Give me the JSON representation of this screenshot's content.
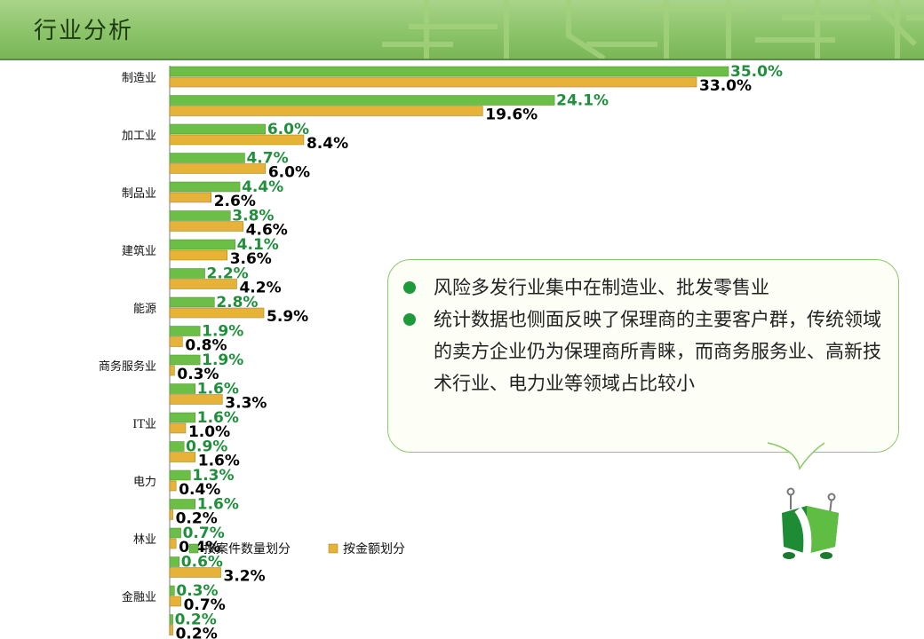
{
  "page": {
    "title": "行业分析"
  },
  "colors": {
    "green": "#6cbf46",
    "gold": "#e6b338",
    "green_label": "#1f8f3c",
    "black_label": "#000000"
  },
  "chart_data": {
    "type": "bar",
    "orientation": "horizontal",
    "categories": [
      "制造业",
      "",
      "加工业",
      "",
      "制品业",
      "",
      "建筑业",
      "",
      "能源",
      "",
      "商务服务业",
      "",
      "IT业",
      "",
      "电力",
      "",
      "林业",
      "",
      "金融业",
      ""
    ],
    "series": [
      {
        "name": "按案件数量划分",
        "color": "#6cbf46",
        "values": [
          35.0,
          24.1,
          6.0,
          4.7,
          4.4,
          3.8,
          4.1,
          2.2,
          2.8,
          1.9,
          1.9,
          1.6,
          1.6,
          0.9,
          1.3,
          1.6,
          0.7,
          0.6,
          0.3,
          0.2
        ],
        "labels": [
          "35.0%",
          "24.1%",
          "6.0%",
          "4.7%",
          "4.4%",
          "3.8%",
          "4.1%",
          "2.2%",
          "2.8%",
          "1.9%",
          "1.9%",
          "1.6%",
          "1.6%",
          "0.9%",
          "1.3%",
          "1.6%",
          "0.7%",
          "0.6%",
          "0.3%",
          "0.2%"
        ]
      },
      {
        "name": "按金额划分",
        "color": "#e6b338",
        "values": [
          33.0,
          19.6,
          8.4,
          6.0,
          2.6,
          4.6,
          3.6,
          4.2,
          5.9,
          0.8,
          0.3,
          3.3,
          1.0,
          1.6,
          0.4,
          0.2,
          0.4,
          3.2,
          0.7,
          0.2
        ],
        "labels": [
          "33.0%",
          "19.6%",
          "8.4%",
          "6.0%",
          "2.6%",
          "4.6%",
          "3.6%",
          "4.2%",
          "5.9%",
          "0.8%",
          "0.3%",
          "3.3%",
          "1.0%",
          "1.6%",
          "0.4%",
          "0.2%",
          "0.4%",
          "3.2%",
          "0.7%",
          "0.2%"
        ]
      }
    ],
    "xlim": [
      0,
      35
    ],
    "legend_position": "bottom-center",
    "grid": false
  },
  "note": {
    "bullets": [
      "风险多发行业集中在制造业、批发零售业",
      "统计数据也侧面反映了保理商的主要客户群，传统领域的卖方企业仍为保理商所青睐，而商务服务业、高新技术行业、电力业等领域占比较小"
    ]
  },
  "icons": {
    "bullet": "filled-circle",
    "mascot": "green-cube-character"
  }
}
